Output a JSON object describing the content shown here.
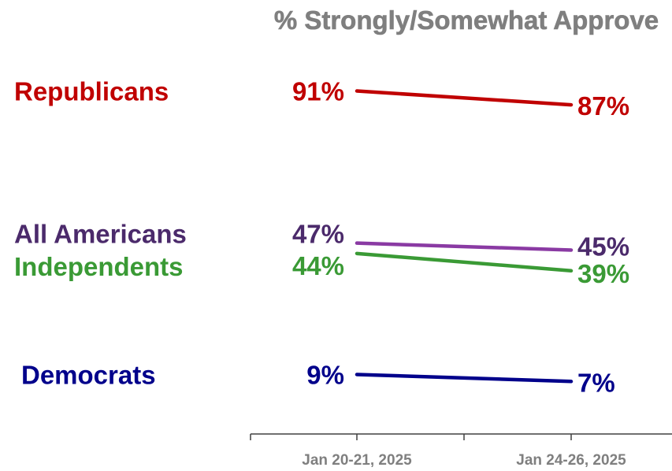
{
  "chart_data": {
    "type": "line",
    "title": "% Strongly/Somewhat Approve",
    "categories": [
      "Jan 20-21, 2025",
      "Jan 24-26, 2025"
    ],
    "ylim": [
      0,
      100
    ],
    "grid": false,
    "legend": "left, as series labels",
    "series": [
      {
        "name": "Republicans",
        "values": [
          91,
          87
        ],
        "labels": [
          "91%",
          "87%"
        ],
        "color": "#c00000"
      },
      {
        "name": "All Americans",
        "values": [
          47,
          45
        ],
        "labels": [
          "47%",
          "45%"
        ],
        "color": "#4b2a6b"
      },
      {
        "name": "Independents",
        "values": [
          44,
          39
        ],
        "labels": [
          "44%",
          "39%"
        ],
        "color": "#3a9a35"
      },
      {
        "name": "Democrats",
        "values": [
          9,
          7
        ],
        "labels": [
          "9%",
          "7%"
        ],
        "color": "#00008b"
      }
    ],
    "line_colors": {
      "All Americans": "#8a3aa3"
    }
  }
}
